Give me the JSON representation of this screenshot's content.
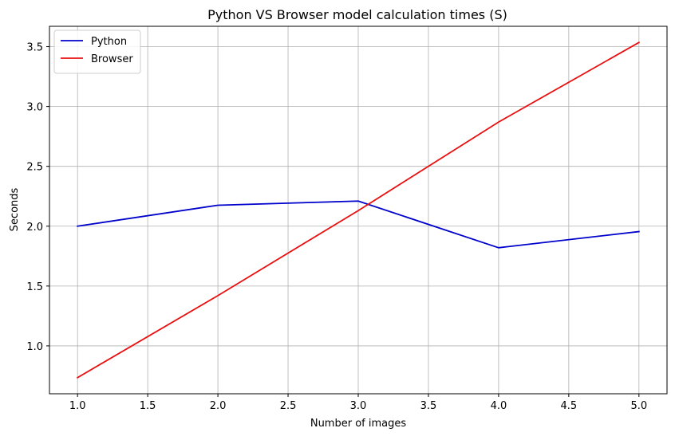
{
  "chart_data": {
    "type": "line",
    "title": "Python VS Browser model calculation times (S)",
    "xlabel": "Number of images",
    "ylabel": "Seconds",
    "x": [
      1.0,
      2.0,
      3.0,
      4.0,
      5.0
    ],
    "xticks": [
      "1.0",
      "1.5",
      "2.0",
      "2.5",
      "3.0",
      "3.5",
      "4.0",
      "4.5",
      "5.0"
    ],
    "yticks": [
      "1.0",
      "1.5",
      "2.0",
      "2.5",
      "3.0",
      "3.5"
    ],
    "xlim": [
      0.8,
      5.2
    ],
    "ylim": [
      0.6,
      3.67
    ],
    "grid": true,
    "legend_position": "top-left",
    "series": [
      {
        "name": "Python",
        "color": "#0000cc",
        "values": [
          2.0,
          2.175,
          2.21,
          1.82,
          1.955
        ]
      },
      {
        "name": "Browser",
        "color": "#e81010",
        "values": [
          0.735,
          1.42,
          2.13,
          2.87,
          3.535
        ]
      }
    ]
  }
}
